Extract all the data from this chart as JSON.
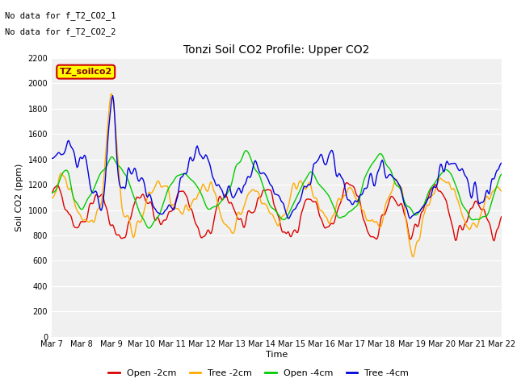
{
  "title": "Tonzi Soil CO2 Profile: Upper CO2",
  "ylabel": "Soil CO2 (ppm)",
  "xlabel": "Time",
  "annotations": [
    "No data for f_T2_CO2_1",
    "No data for f_T2_CO2_2"
  ],
  "legend_label": "TZ_soilco2",
  "legend_entries": [
    "Open -2cm",
    "Tree -2cm",
    "Open -4cm",
    "Tree -4cm"
  ],
  "line_colors": [
    "#dd0000",
    "#ffaa00",
    "#00cc00",
    "#0000dd"
  ],
  "ylim": [
    0,
    2200
  ],
  "yticks": [
    0,
    200,
    400,
    600,
    800,
    1000,
    1200,
    1400,
    1600,
    1800,
    2000,
    2200
  ],
  "background_color": "#ffffff",
  "plot_bg": "#f0f0f0",
  "x_tick_labels": [
    "Mar 7",
    "Mar 8",
    "Mar 9",
    "Mar 10",
    "Mar 11",
    "Mar 12",
    "Mar 13",
    "Mar 14",
    "Mar 15",
    "Mar 16",
    "Mar 17",
    "Mar 18",
    "Mar 19",
    "Mar 20",
    "Mar 21",
    "Mar 22"
  ],
  "num_points": 480,
  "seed": 42
}
